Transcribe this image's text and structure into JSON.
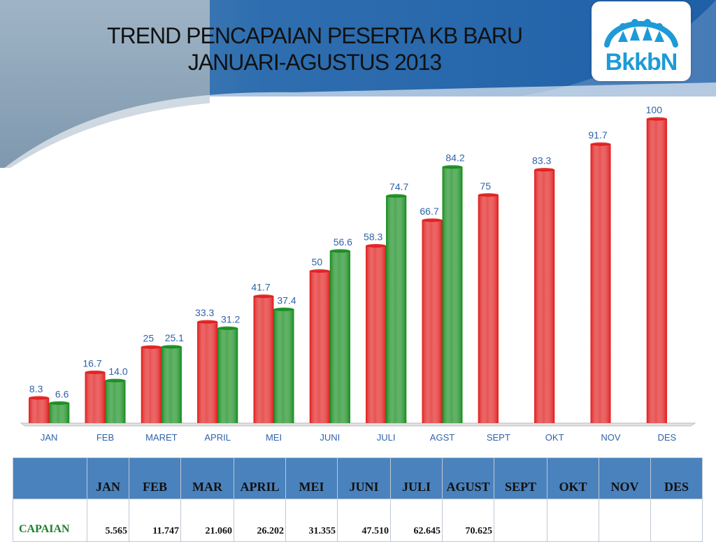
{
  "slide": {
    "title_line1": "TREND PENCAPAIAN PESERTA KB BARU",
    "title_line2": "JANUARI-AGUSTUS  2013",
    "logo_text": "BkkbN"
  },
  "chart_data": {
    "type": "bar",
    "categories": [
      "JAN",
      "FEB",
      "MARET",
      "APRIL",
      "MEI",
      "JUNI",
      "JULI",
      "AGST",
      "SEPT",
      "OKT",
      "NOV",
      "DES"
    ],
    "series": [
      {
        "color": "#e01818",
        "values": [
          8.3,
          16.7,
          25,
          33.3,
          41.7,
          50,
          58.3,
          66.7,
          75,
          83.3,
          91.7,
          100
        ],
        "labels": [
          "8.3",
          "16.7",
          "25",
          "33.3",
          "41.7",
          "50",
          "58.3",
          "66.7",
          "75",
          "83.3",
          "91.7",
          "100"
        ]
      },
      {
        "color": "#128a1a",
        "values": [
          6.6,
          14.0,
          25.1,
          31.2,
          37.4,
          56.6,
          74.7,
          84.2,
          null,
          null,
          null,
          null
        ],
        "labels": [
          "6.6",
          "14.0",
          "25.1",
          "31.2",
          "37.4",
          "56.6",
          "74.7",
          "84.2",
          "",
          "",
          "",
          ""
        ]
      }
    ],
    "ylim": [
      0,
      100
    ],
    "grid": false,
    "legend": "none",
    "label_color": "#2f63a8"
  },
  "table": {
    "headers": [
      "",
      "JAN",
      "FEB",
      "MAR",
      "APRIL",
      "MEI",
      "JUNI",
      "JULI",
      "AGUST",
      "SEPT",
      "OKT",
      "NOV",
      "DES"
    ],
    "row_label": "CAPAIAN",
    "row_values": [
      "5.565",
      "11.747",
      "21.060",
      "26.202",
      "31.355",
      "47.510",
      "62.645",
      "70.625",
      "",
      "",
      "",
      ""
    ]
  }
}
